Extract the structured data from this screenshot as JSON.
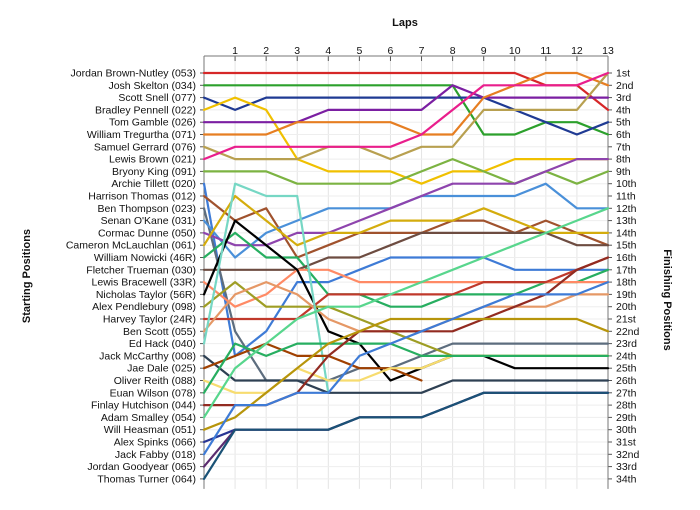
{
  "chart_data": {
    "type": "line",
    "subtype": "lap-position-chart",
    "title": "Laps",
    "ylabel_left": "Starting Positions",
    "ylabel_right": "Finishing Positions",
    "laps": [
      1,
      2,
      3,
      4,
      5,
      6,
      7,
      8,
      9,
      10,
      11,
      12,
      13
    ],
    "y_inverted": true,
    "grid": true,
    "starting_labels": [
      "Jordan Brown-Nutley (053)",
      "Josh Skelton (034)",
      "Scott Snell (077)",
      "Bradley Pennell (022)",
      "Tom Gamble (026)",
      "William Tregurtha (071)",
      "Samuel Gerrard (076)",
      "Lewis Brown (021)",
      "Bryony King (091)",
      "Archie Tillett (020)",
      "Harrison Thomas (012)",
      "Ben Thompson (023)",
      "Senan O'Kane (031)",
      "Cormac Dunne (050)",
      "Cameron McLauchlan (061)",
      "William Nowicki (46R)",
      "Fletcher Trueman (030)",
      "Lewis Bracewell (33R)",
      "Nicholas Taylor (56R)",
      "Alex Pendlebury (098)",
      "Harvey Taylor (24R)",
      "Ben Scott (055)",
      "Ed Hack (040)",
      "Jack McCarthy (008)",
      "Jae Dale (025)",
      "Oliver Reith (088)",
      "Euan Wilson (078)",
      "Finlay Hutchison (044)",
      "Adam Smalley (054)",
      "Will Heasman (051)",
      "Alex Spinks (066)",
      "Jack Fabby (018)",
      "Jordan Goodyear (065)",
      "Thomas Turner (064)"
    ],
    "finishing_labels": [
      "1st",
      "2nd",
      "3rd",
      "4th",
      "5th",
      "6th",
      "7th",
      "8th",
      "9th",
      "10th",
      "11th",
      "12th",
      "13th",
      "14th",
      "15th",
      "16th",
      "17th",
      "18th",
      "19th",
      "20th",
      "21st",
      "22nd",
      "23rd",
      "24th",
      "25th",
      "26th",
      "27th",
      "28th",
      "29th",
      "30th",
      "31st",
      "32nd",
      "33rd",
      "34th"
    ],
    "series": [
      {
        "start": 1,
        "color": "#d62728",
        "positions": [
          1,
          1,
          1,
          1,
          1,
          1,
          1,
          1,
          1,
          1,
          2,
          2,
          4
        ]
      },
      {
        "start": 2,
        "color": "#2ca02c",
        "positions": [
          2,
          2,
          2,
          2,
          2,
          2,
          2,
          2,
          6,
          6,
          5,
          5,
          6
        ]
      },
      {
        "start": 3,
        "color": "#1f3a93",
        "positions": [
          4,
          3,
          3,
          3,
          3,
          3,
          3,
          3,
          3,
          4,
          5,
          6,
          5
        ]
      },
      {
        "start": 4,
        "color": "#f0c000",
        "positions": [
          3,
          4,
          8,
          9,
          9,
          9,
          10,
          9,
          9,
          8,
          8,
          8,
          8
        ]
      },
      {
        "start": 5,
        "color": "#7b1fa2",
        "positions": [
          5,
          5,
          5,
          4,
          4,
          4,
          4,
          2,
          3,
          3,
          3,
          3,
          3
        ]
      },
      {
        "start": 6,
        "color": "#e67e22",
        "positions": [
          6,
          6,
          5,
          5,
          5,
          5,
          6,
          6,
          3,
          2,
          1,
          1,
          2
        ]
      },
      {
        "start": 7,
        "color": "#b8a050",
        "positions": [
          8,
          8,
          8,
          7,
          7,
          8,
          7,
          7,
          4,
          4,
          4,
          4,
          1
        ]
      },
      {
        "start": 8,
        "color": "#e91e8c",
        "positions": [
          7,
          7,
          7,
          7,
          7,
          7,
          6,
          4,
          2,
          2,
          2,
          2,
          1
        ]
      },
      {
        "start": 9,
        "color": "#7cb342",
        "positions": [
          9,
          9,
          10,
          10,
          10,
          10,
          9,
          8,
          9,
          10,
          9,
          10,
          9
        ]
      },
      {
        "start": 10,
        "color": "#3e7bd6",
        "positions": [
          24,
          22,
          18,
          18,
          17,
          16,
          16,
          16,
          16,
          17,
          17,
          17,
          17
        ]
      },
      {
        "start": 11,
        "color": "#a0522d",
        "positions": [
          13,
          12,
          16,
          15,
          14,
          14,
          14,
          13,
          13,
          14,
          13,
          14,
          15
        ]
      },
      {
        "start": 12,
        "color": "#5d6d7e",
        "positions": [
          22,
          26,
          26,
          26,
          25,
          25,
          24,
          23,
          23,
          23,
          23,
          23,
          23
        ]
      },
      {
        "start": 13,
        "color": "#4a90d9",
        "positions": [
          16,
          14,
          13,
          12,
          12,
          12,
          11,
          11,
          11,
          11,
          10,
          12,
          12
        ]
      },
      {
        "start": 14,
        "color": "#8e44ad",
        "positions": [
          15,
          15,
          14,
          14,
          13,
          12,
          11,
          10,
          10,
          10,
          9,
          8,
          8
        ]
      },
      {
        "start": 15,
        "color": "#d4ac0d",
        "positions": [
          11,
          13,
          15,
          14,
          14,
          13,
          13,
          13,
          12,
          13,
          14,
          14,
          14
        ]
      },
      {
        "start": 16,
        "color": "#27ae60",
        "positions": [
          14,
          16,
          16,
          19,
          19,
          20,
          20,
          19,
          19,
          19,
          18,
          18,
          17
        ]
      },
      {
        "start": 17,
        "color": "#6d4c41",
        "positions": [
          17,
          17,
          17,
          16,
          16,
          15,
          14,
          14,
          14,
          14,
          14,
          15,
          15
        ]
      },
      {
        "start": 18,
        "color": "#ff8a65",
        "positions": [
          20,
          19,
          17,
          17,
          18,
          18,
          18,
          18,
          18,
          18,
          18,
          18,
          18
        ]
      },
      {
        "start": 19,
        "color": "#000000",
        "positions": [
          13,
          15,
          17,
          22,
          23,
          26,
          25,
          24,
          24,
          25,
          25,
          25,
          25
        ]
      },
      {
        "start": 20,
        "color": "#9e9d24",
        "positions": [
          18,
          20,
          20,
          20,
          21,
          22,
          23,
          24,
          24,
          24,
          24,
          24,
          24
        ]
      },
      {
        "start": 21,
        "color": "#c0392b",
        "positions": [
          21,
          21,
          21,
          19,
          19,
          19,
          19,
          19,
          18,
          18,
          18,
          17,
          16
        ]
      },
      {
        "start": 22,
        "color": "#e59866",
        "positions": [
          19,
          18,
          19,
          21,
          22,
          22,
          22,
          21,
          20,
          20,
          20,
          19,
          19
        ]
      },
      {
        "start": 23,
        "color": "#76d7c4",
        "positions": [
          10,
          11,
          11,
          27,
          null,
          null,
          null,
          null,
          null,
          null,
          null,
          null,
          null
        ]
      },
      {
        "start": 24,
        "color": "#2e4053",
        "positions": [
          26,
          26,
          26,
          27,
          27,
          27,
          27,
          26,
          26,
          26,
          26,
          26,
          26
        ]
      },
      {
        "start": 25,
        "color": "#a04000",
        "positions": [
          24,
          23,
          24,
          24,
          25,
          25,
          26,
          null,
          null,
          null,
          null,
          null,
          null
        ]
      },
      {
        "start": 26,
        "color": "#f7dc6f",
        "positions": [
          27,
          27,
          25,
          26,
          26,
          25,
          25,
          24,
          24,
          24,
          24,
          24,
          24
        ]
      },
      {
        "start": 27,
        "color": "#27ae60",
        "positions": [
          23,
          24,
          23,
          23,
          23,
          23,
          24,
          24,
          24,
          24,
          24,
          24,
          24
        ]
      },
      {
        "start": 28,
        "color": "#922b21",
        "positions": [
          28,
          28,
          27,
          24,
          22,
          22,
          22,
          22,
          21,
          20,
          19,
          17,
          16
        ]
      },
      {
        "start": 29,
        "color": "#58d68d",
        "positions": [
          25,
          23,
          21,
          20,
          20,
          19,
          18,
          17,
          16,
          15,
          14,
          13,
          12
        ]
      },
      {
        "start": 30,
        "color": "#b7950b",
        "positions": [
          29,
          27,
          25,
          23,
          22,
          21,
          21,
          21,
          21,
          21,
          21,
          21,
          22
        ]
      },
      {
        "start": 31,
        "color": "#283593",
        "positions": [
          30,
          30,
          30,
          30,
          29,
          29,
          29,
          28,
          27,
          27,
          27,
          27,
          27
        ]
      },
      {
        "start": 32,
        "color": "#3e7bd6",
        "positions": [
          28,
          28,
          27,
          27,
          24,
          23,
          22,
          21,
          20,
          19,
          19,
          19,
          18
        ]
      },
      {
        "start": 33,
        "color": "#5b2c6f",
        "positions": [
          30,
          30,
          30,
          30,
          29,
          29,
          29,
          28,
          27,
          27,
          27,
          27,
          27
        ]
      },
      {
        "start": 34,
        "color": "#1a5276",
        "positions": [
          30,
          30,
          30,
          30,
          29,
          29,
          29,
          28,
          27,
          27,
          27,
          27,
          27
        ]
      }
    ]
  }
}
